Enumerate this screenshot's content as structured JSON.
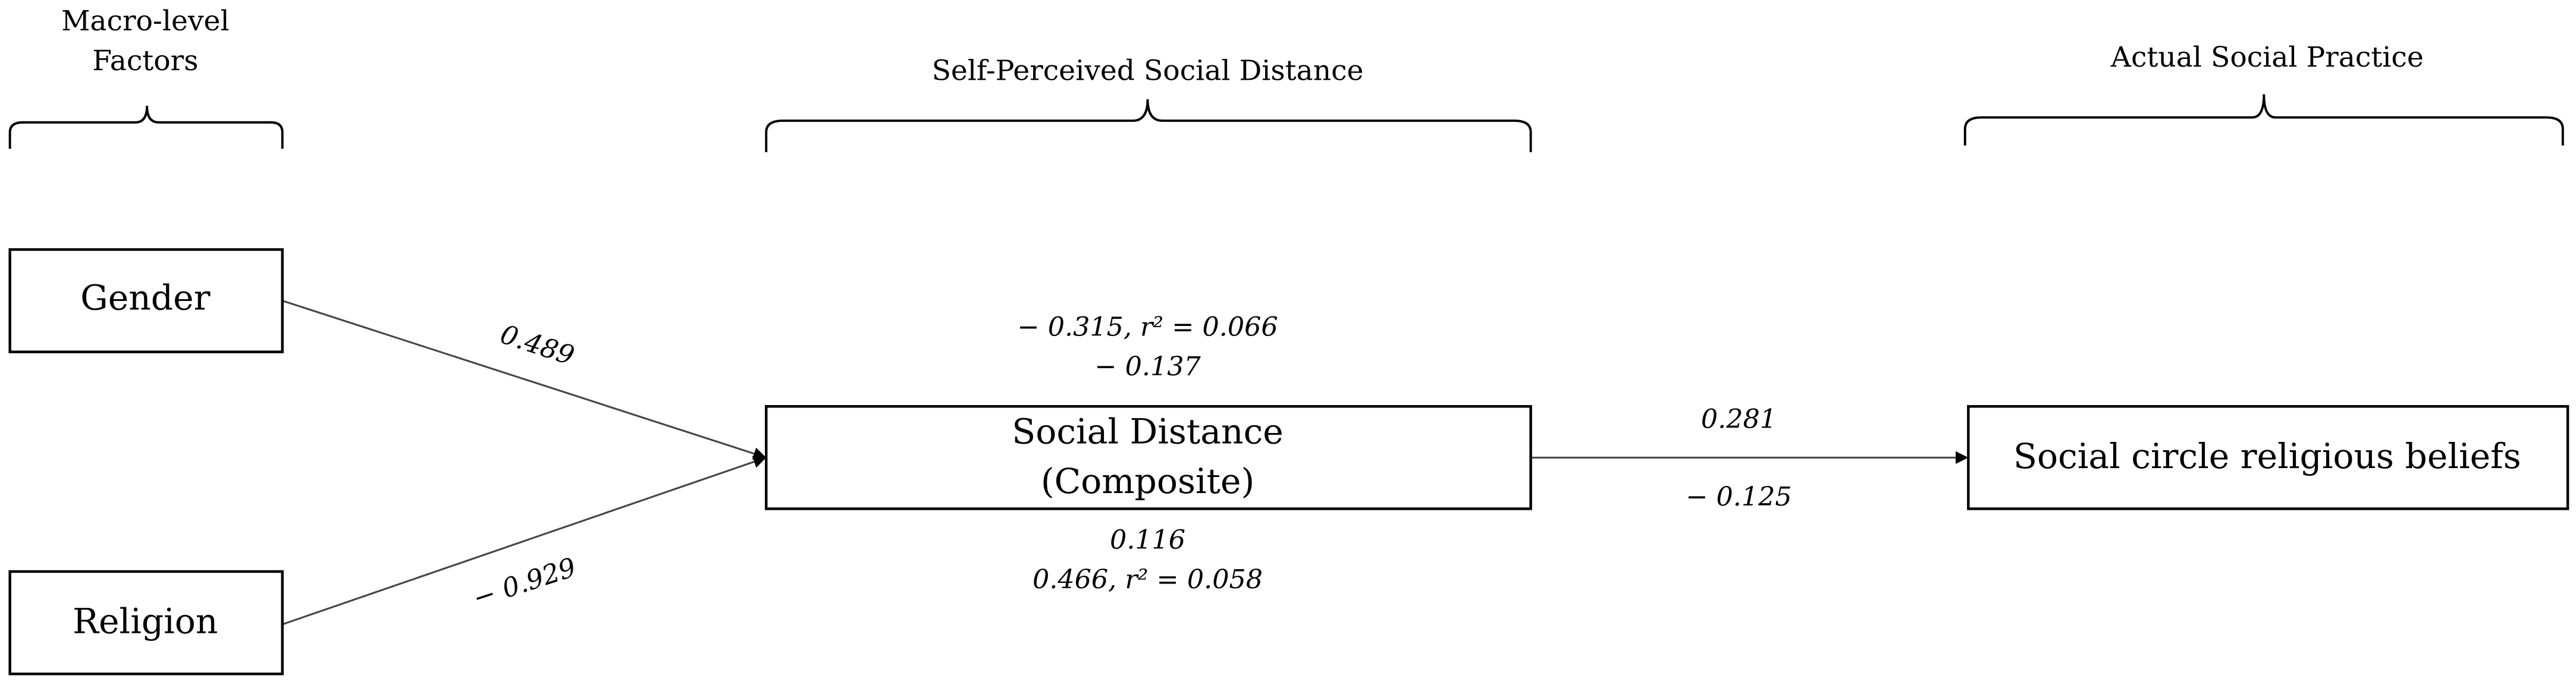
{
  "headers": [
    {
      "lines": [
        "Macro-level",
        "Factors"
      ]
    },
    {
      "lines": [
        "Self-Perceived Social Distance"
      ]
    },
    {
      "lines": [
        "Actual Social Practice"
      ]
    }
  ],
  "nodes": [
    {
      "lines": [
        "Gender"
      ]
    },
    {
      "lines": [
        "Religion"
      ]
    },
    {
      "lines": [
        "Social Distance",
        "(Composite)"
      ]
    },
    {
      "lines": [
        "Social circle religious beliefs"
      ]
    }
  ],
  "edge_labels": {
    "gender_to_sd": "0.489",
    "religion_to_sd": "− 0.929",
    "sd_above": [
      "− 0.315, r² = 0.066",
      "− 0.137"
    ],
    "sd_below": [
      "0.116",
      "0.466, r² = 0.058"
    ],
    "sd_to_scrb_above": "0.281",
    "sd_to_scrb_below": "− 0.125"
  }
}
